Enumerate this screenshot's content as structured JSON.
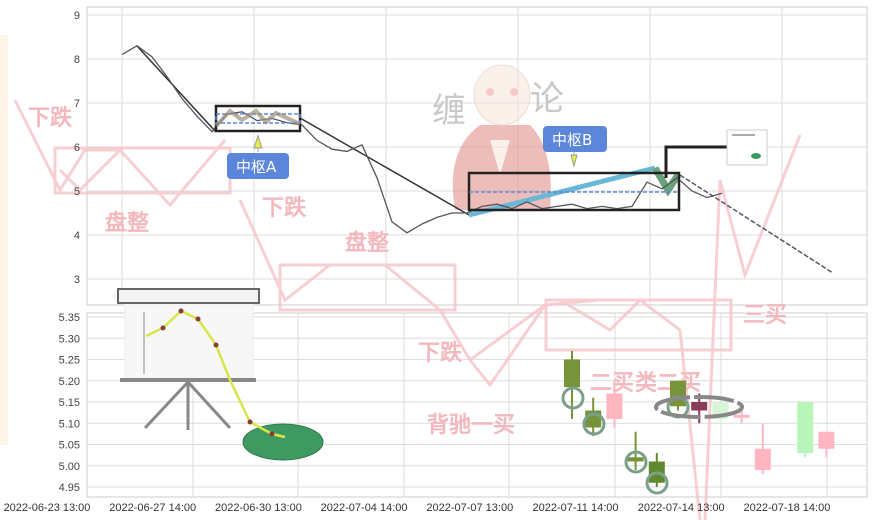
{
  "watermarks": {
    "fall_1": "下跌",
    "consolidate_1": "盘整",
    "fall_2": "下跌",
    "consolidate_2": "盘整",
    "fall_3": "下跌",
    "divergence_buy1": "背驰一买",
    "buy2": "二买",
    "quasi_buy2": "类二买",
    "buy3": "三买",
    "brand_left": "缠",
    "brand_right": "论"
  },
  "chart_data": [
    {
      "type": "line",
      "ylim": [
        2.7,
        9.2
      ],
      "yticks": [
        3,
        4,
        5,
        6,
        7,
        8,
        9
      ],
      "grid": true,
      "values": [
        8.1,
        8.3,
        8.05,
        7.6,
        7.1,
        6.7,
        6.35,
        6.75,
        6.8,
        6.6,
        6.65,
        6.55,
        6.5,
        6.15,
        5.95,
        5.9,
        6.05,
        5.3,
        4.3,
        4.05,
        4.25,
        4.4,
        4.5,
        4.5,
        4.65,
        4.7,
        4.6,
        4.75,
        4.6,
        4.65,
        4.7,
        4.6,
        4.65,
        4.6,
        4.65,
        5.2,
        5.05,
        5.3,
        5.0,
        4.85,
        4.95
      ],
      "annotations": [
        {
          "label": "中枢A",
          "range": [
            6.36,
            6.93
          ]
        },
        {
          "label": "中枢B",
          "range": [
            4.57,
            5.41
          ]
        }
      ],
      "colors": {
        "line": "#555560",
        "zone_box": "#222222",
        "label_bg": "#5b86d9",
        "stroke_cyan": "#6bb8d6"
      }
    },
    {
      "type": "candlestick",
      "ylim": [
        4.93,
        5.36
      ],
      "yticks": [
        "4.95",
        "5.00",
        "5.05",
        "5.10",
        "5.15",
        "5.20",
        "5.25",
        "5.30",
        "5.35"
      ],
      "grid": true,
      "x_tick_labels": [
        "2022-06-23 13:00",
        "2022-06-27 14:00",
        "2022-06-30 13:00",
        "2022-07-04 14:00",
        "2022-07-07 13:00",
        "2022-07-11 14:00",
        "2022-07-14 13:00",
        "2022-07-18 14:00"
      ],
      "candles": [
        {
          "o": 5.25,
          "h": 5.27,
          "l": 5.11,
          "c": 5.185,
          "color": "#77943a"
        },
        {
          "o": 5.13,
          "h": 5.16,
          "l": 5.07,
          "c": 5.09,
          "color": "#77943a"
        },
        {
          "o": 5.11,
          "h": 5.2,
          "l": 5.09,
          "c": 5.17,
          "color": "#ffb6c1"
        },
        {
          "o": 5.02,
          "h": 5.08,
          "l": 4.99,
          "c": 5.01,
          "color": "#77943a"
        },
        {
          "o": 5.01,
          "h": 5.03,
          "l": 4.95,
          "c": 4.96,
          "color": "#5f8a30"
        },
        {
          "o": 5.2,
          "h": 5.2,
          "l": 5.13,
          "c": 5.14,
          "color": "#77943a"
        },
        {
          "o": 5.15,
          "h": 5.17,
          "l": 5.1,
          "c": 5.13,
          "color": "#8b3a5a"
        },
        {
          "o": 5.11,
          "h": 5.15,
          "l": 5.1,
          "c": 5.15,
          "color": "#d8f5d8"
        },
        {
          "o": 5.12,
          "h": 5.13,
          "l": 5.1,
          "c": 5.12,
          "color": "#ffb6c1"
        },
        {
          "o": 4.99,
          "h": 5.1,
          "l": 4.98,
          "c": 5.04,
          "color": "#ffb6c1"
        },
        null,
        {
          "o": 5.03,
          "h": 5.15,
          "l": 5.02,
          "c": 5.15,
          "color": "#b8f5b8"
        },
        {
          "o": 5.04,
          "h": 5.08,
          "l": 5.02,
          "c": 5.08,
          "color": "#ffb6c1"
        }
      ]
    }
  ]
}
